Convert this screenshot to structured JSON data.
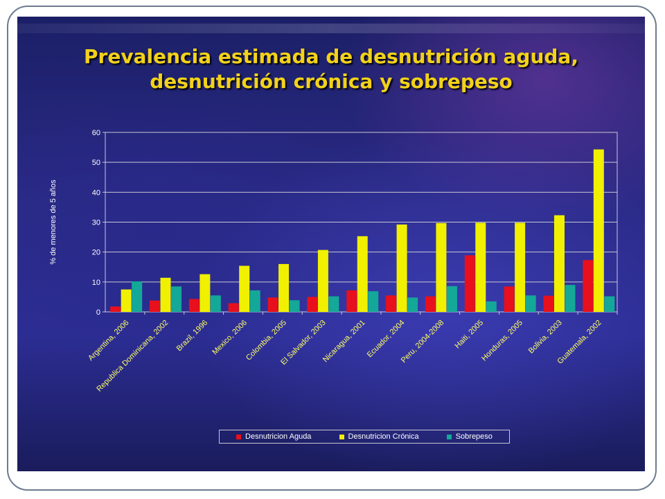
{
  "slide": {
    "title_line1": "Prevalencia estimada de desnutrición aguda,",
    "title_line2": "desnutrición crónica y sobrepeso"
  },
  "chart_data": {
    "type": "bar",
    "title": "",
    "xlabel": "",
    "ylabel": "% de menores de 5 años",
    "ylim": [
      0,
      60
    ],
    "yticks": [
      0,
      10,
      20,
      30,
      40,
      50,
      60
    ],
    "grid": true,
    "legend_position": "bottom",
    "categories": [
      "Argentina, 2006",
      "Republica Dominicana, 2002",
      "Brazil, 1996",
      "Mexico, 2006",
      "Colombia, 2005",
      "El Salvador, 2003",
      "Nicaragua, 2001",
      "Ecuador, 2004",
      "Peru, 2004-2008",
      "Haiti, 2005",
      "Honduras, 2005",
      "Bolivia, 2003",
      "Guatemala, 2002"
    ],
    "series": [
      {
        "name": "Desnutricion Aguda",
        "color": "#e8101c",
        "values": [
          1.8,
          3.8,
          4.3,
          2.9,
          4.8,
          5.0,
          7.2,
          5.5,
          5.2,
          18.9,
          8.5,
          5.4,
          17.3
        ]
      },
      {
        "name": "Desnutricion Crónica",
        "color": "#f0f000",
        "values": [
          7.5,
          11.4,
          12.6,
          15.4,
          16.0,
          20.7,
          25.3,
          29.2,
          29.7,
          29.8,
          29.8,
          32.3,
          54.3
        ]
      },
      {
        "name": "Sobrepeso",
        "color": "#14a898",
        "values": [
          10.2,
          8.5,
          5.5,
          7.2,
          3.9,
          5.2,
          6.9,
          4.8,
          8.6,
          3.5,
          5.5,
          9.0,
          5.2
        ]
      }
    ]
  }
}
